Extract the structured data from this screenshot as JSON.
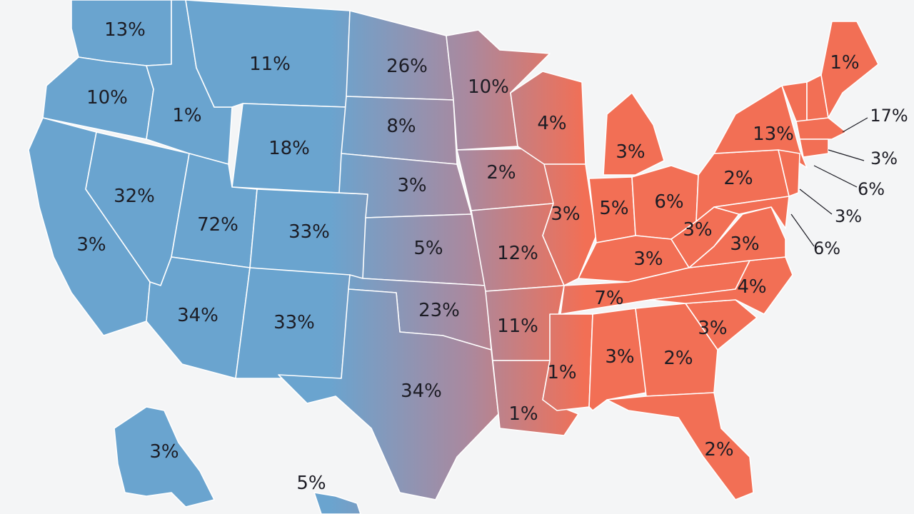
{
  "map": {
    "colors": {
      "west": "#6aa4cf",
      "mid": "#a9899f",
      "east": "#f26f55",
      "background": "#f4f5f6",
      "border": "#ffffff",
      "text": "#1c1c24"
    },
    "labels": {
      "washington": "13%",
      "oregon": "10%",
      "california": "3%",
      "idaho": "1%",
      "nevada": "32%",
      "montana": "11%",
      "wyoming": "18%",
      "utah": "72%",
      "colorado": "33%",
      "arizona": "34%",
      "new_mexico": "33%",
      "north_dakota": "26%",
      "south_dakota": "8%",
      "nebraska": "3%",
      "kansas": "5%",
      "oklahoma": "23%",
      "texas": "34%",
      "minnesota": "10%",
      "iowa": "2%",
      "missouri": "12%",
      "arkansas": "11%",
      "louisiana": "1%",
      "wisconsin": "4%",
      "illinois": "3%",
      "michigan": "3%",
      "indiana": "5%",
      "ohio": "6%",
      "kentucky": "3%",
      "tennessee": "7%",
      "mississippi": "1%",
      "alabama": "3%",
      "georgia": "2%",
      "florida": "2%",
      "south_carolina": "3%",
      "north_carolina": "4%",
      "virginia": "3%",
      "west_virginia": "3%",
      "pennsylvania": "2%",
      "new_york": "13%",
      "maine": "1%",
      "alaska": "3%",
      "hawaii": "5%",
      "callout_1": "17%",
      "callout_2": "3%",
      "callout_3": "6%",
      "callout_4": "3%",
      "callout_5": "6%"
    }
  }
}
